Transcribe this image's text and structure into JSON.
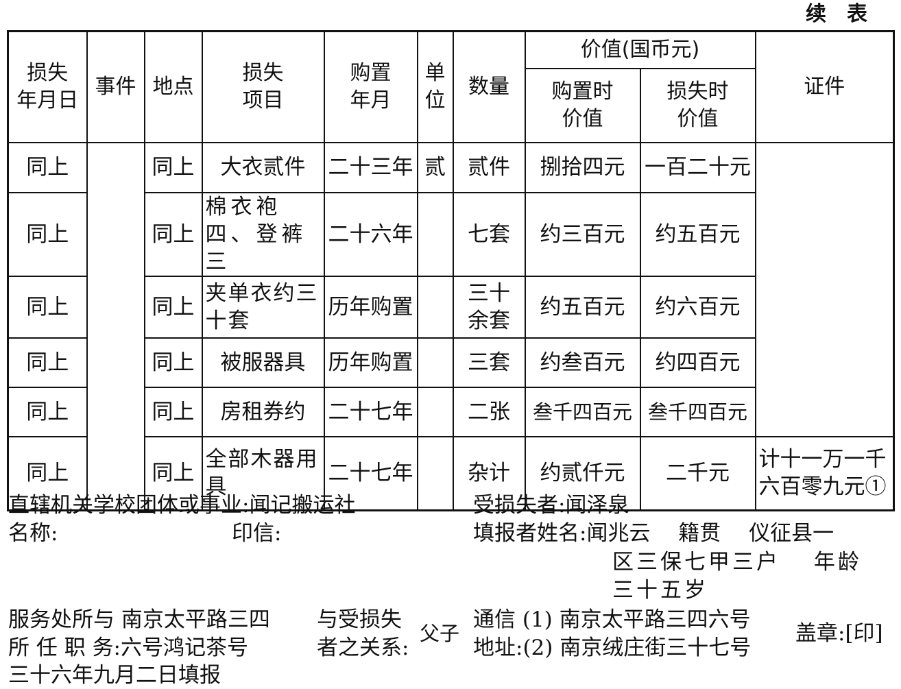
{
  "continued_label": "续　表",
  "headers": {
    "date": "损失\n年月日",
    "event": "事件",
    "place": "地点",
    "item": "损失\n项目",
    "purchase_date": "购置\n年月",
    "unit": "单\n位",
    "quantity": "数量",
    "value_group": "价值(国币元)",
    "value_purchase": "购置时\n价值",
    "value_loss": "损失时\n价值",
    "certificate": "证件"
  },
  "rows": [
    {
      "date": "同上",
      "place": "同上",
      "item": "大衣贰件",
      "purchase_date": "二十三年",
      "unit": "贰",
      "quantity": "贰件",
      "value_purchase": "捌拾四元",
      "value_loss": "一百二十元"
    },
    {
      "date": "同上",
      "place": "同上",
      "item": "棉衣袍四、登裤三",
      "purchase_date": "二十六年",
      "unit": "",
      "quantity": "七套",
      "value_purchase": "约三百元",
      "value_loss": "约五百元"
    },
    {
      "date": "同上",
      "place": "同上",
      "item": "夹单衣约三十套",
      "purchase_date": "历年购置",
      "unit": "",
      "quantity": "三十\n余套",
      "value_purchase": "约五百元",
      "value_loss": "约六百元"
    },
    {
      "date": "同上",
      "place": "同上",
      "item": "被服器具",
      "purchase_date": "历年购置",
      "unit": "",
      "quantity": "三套",
      "value_purchase": "约叁百元",
      "value_loss": "约四百元"
    },
    {
      "date": "同上",
      "place": "同上",
      "item": "房租券约",
      "purchase_date": "二十七年",
      "unit": "",
      "quantity": "二张",
      "value_purchase": "叁千四百元",
      "value_loss": "叁千四百元"
    },
    {
      "date": "同上",
      "place": "同上",
      "item": "全部木器用具",
      "purchase_date": "二十七年",
      "unit": "",
      "quantity": "杂计",
      "value_purchase": "约贰仟元",
      "value_loss": "二千元",
      "certificate": "计十一万一千六百零九元①"
    }
  ],
  "footer": {
    "org_label": "直辖机关学校团体或事业:闻记搬运社",
    "name_label": "名称:",
    "seal_label": "印信:",
    "victim": "受损失者:闻泽泉",
    "reporter_line1": "填报者姓名:闻兆云　 籍贯　 仪征县一",
    "reporter_line2": "区三保七甲三户　 年龄",
    "reporter_line3": "三十五岁",
    "office_line1": "服务处所与 南京太平路三四",
    "office_line2": "所 任 职 务:六号鸿记茶号",
    "relation_line1": "与受损失",
    "relation_line2": "者之关系:",
    "relation_value": "父子",
    "address_line1": "通信 (1) 南京太平路三四六号",
    "address_line2": "地址:(2) 南京绒庄街三十七号",
    "stamp": "盖章:[印]",
    "date": "三十六年九月二日填报"
  }
}
